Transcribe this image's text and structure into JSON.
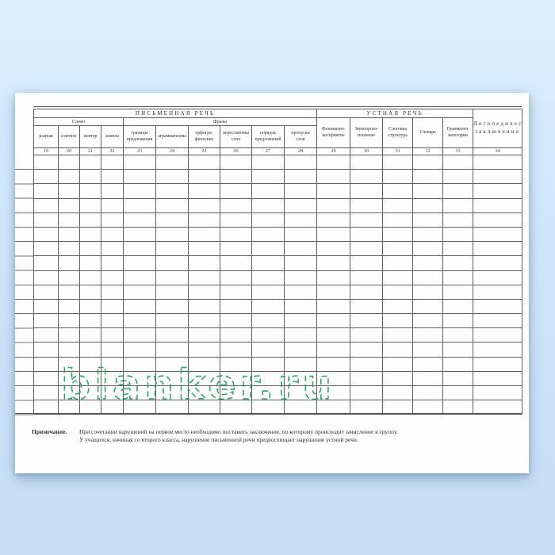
{
  "watermark": {
    "text": "blanker.ru",
    "color": "#0b9b50"
  },
  "table": {
    "groups": {
      "written": "ПИСЬМЕННАЯ РЕЧЬ",
      "oral": "УСТНАЯ РЕЧЬ"
    },
    "subgroups": {
      "word": "Слово",
      "phrases": "Фразы"
    },
    "columns": [
      {
        "label": "разрыв",
        "num": "19"
      },
      {
        "label": "слитное",
        "num": "20"
      },
      {
        "label": "повтор",
        "num": "21"
      },
      {
        "label": "замена",
        "num": "22"
      },
      {
        "label": "границы\nпредложения",
        "num": "23"
      },
      {
        "label": "аграмматизмы",
        "num": "24"
      },
      {
        "label": "орфогра-\nфические",
        "num": "25"
      },
      {
        "label": "перестановка\nслов",
        "num": "26"
      },
      {
        "label": "порядок\nпредложений",
        "num": "27"
      },
      {
        "label": "пропуски\nслов",
        "num": "28"
      },
      {
        "label": "Фонематич.\nвосприятие",
        "num": "29"
      },
      {
        "label": "Звукопроиз-\nношение",
        "num": "30"
      },
      {
        "label": "Слоговая\nструктура",
        "num": "31"
      },
      {
        "label": "Словарь",
        "num": "32"
      },
      {
        "label": "Грамматич.\nкатегории",
        "num": "33"
      },
      {
        "label": "Логопедическое\nзаключение",
        "num": "34"
      }
    ],
    "data_rows": 18
  },
  "note": {
    "label": "Примечание.",
    "lines": [
      "При сочетании нарушений на первое место необходимо поставить заключение, по которому происходит зачисление в группу.",
      "У учащихся, начиная со второго класса, нарушение письменной речи предвосхищает нарушение устной речи."
    ]
  }
}
